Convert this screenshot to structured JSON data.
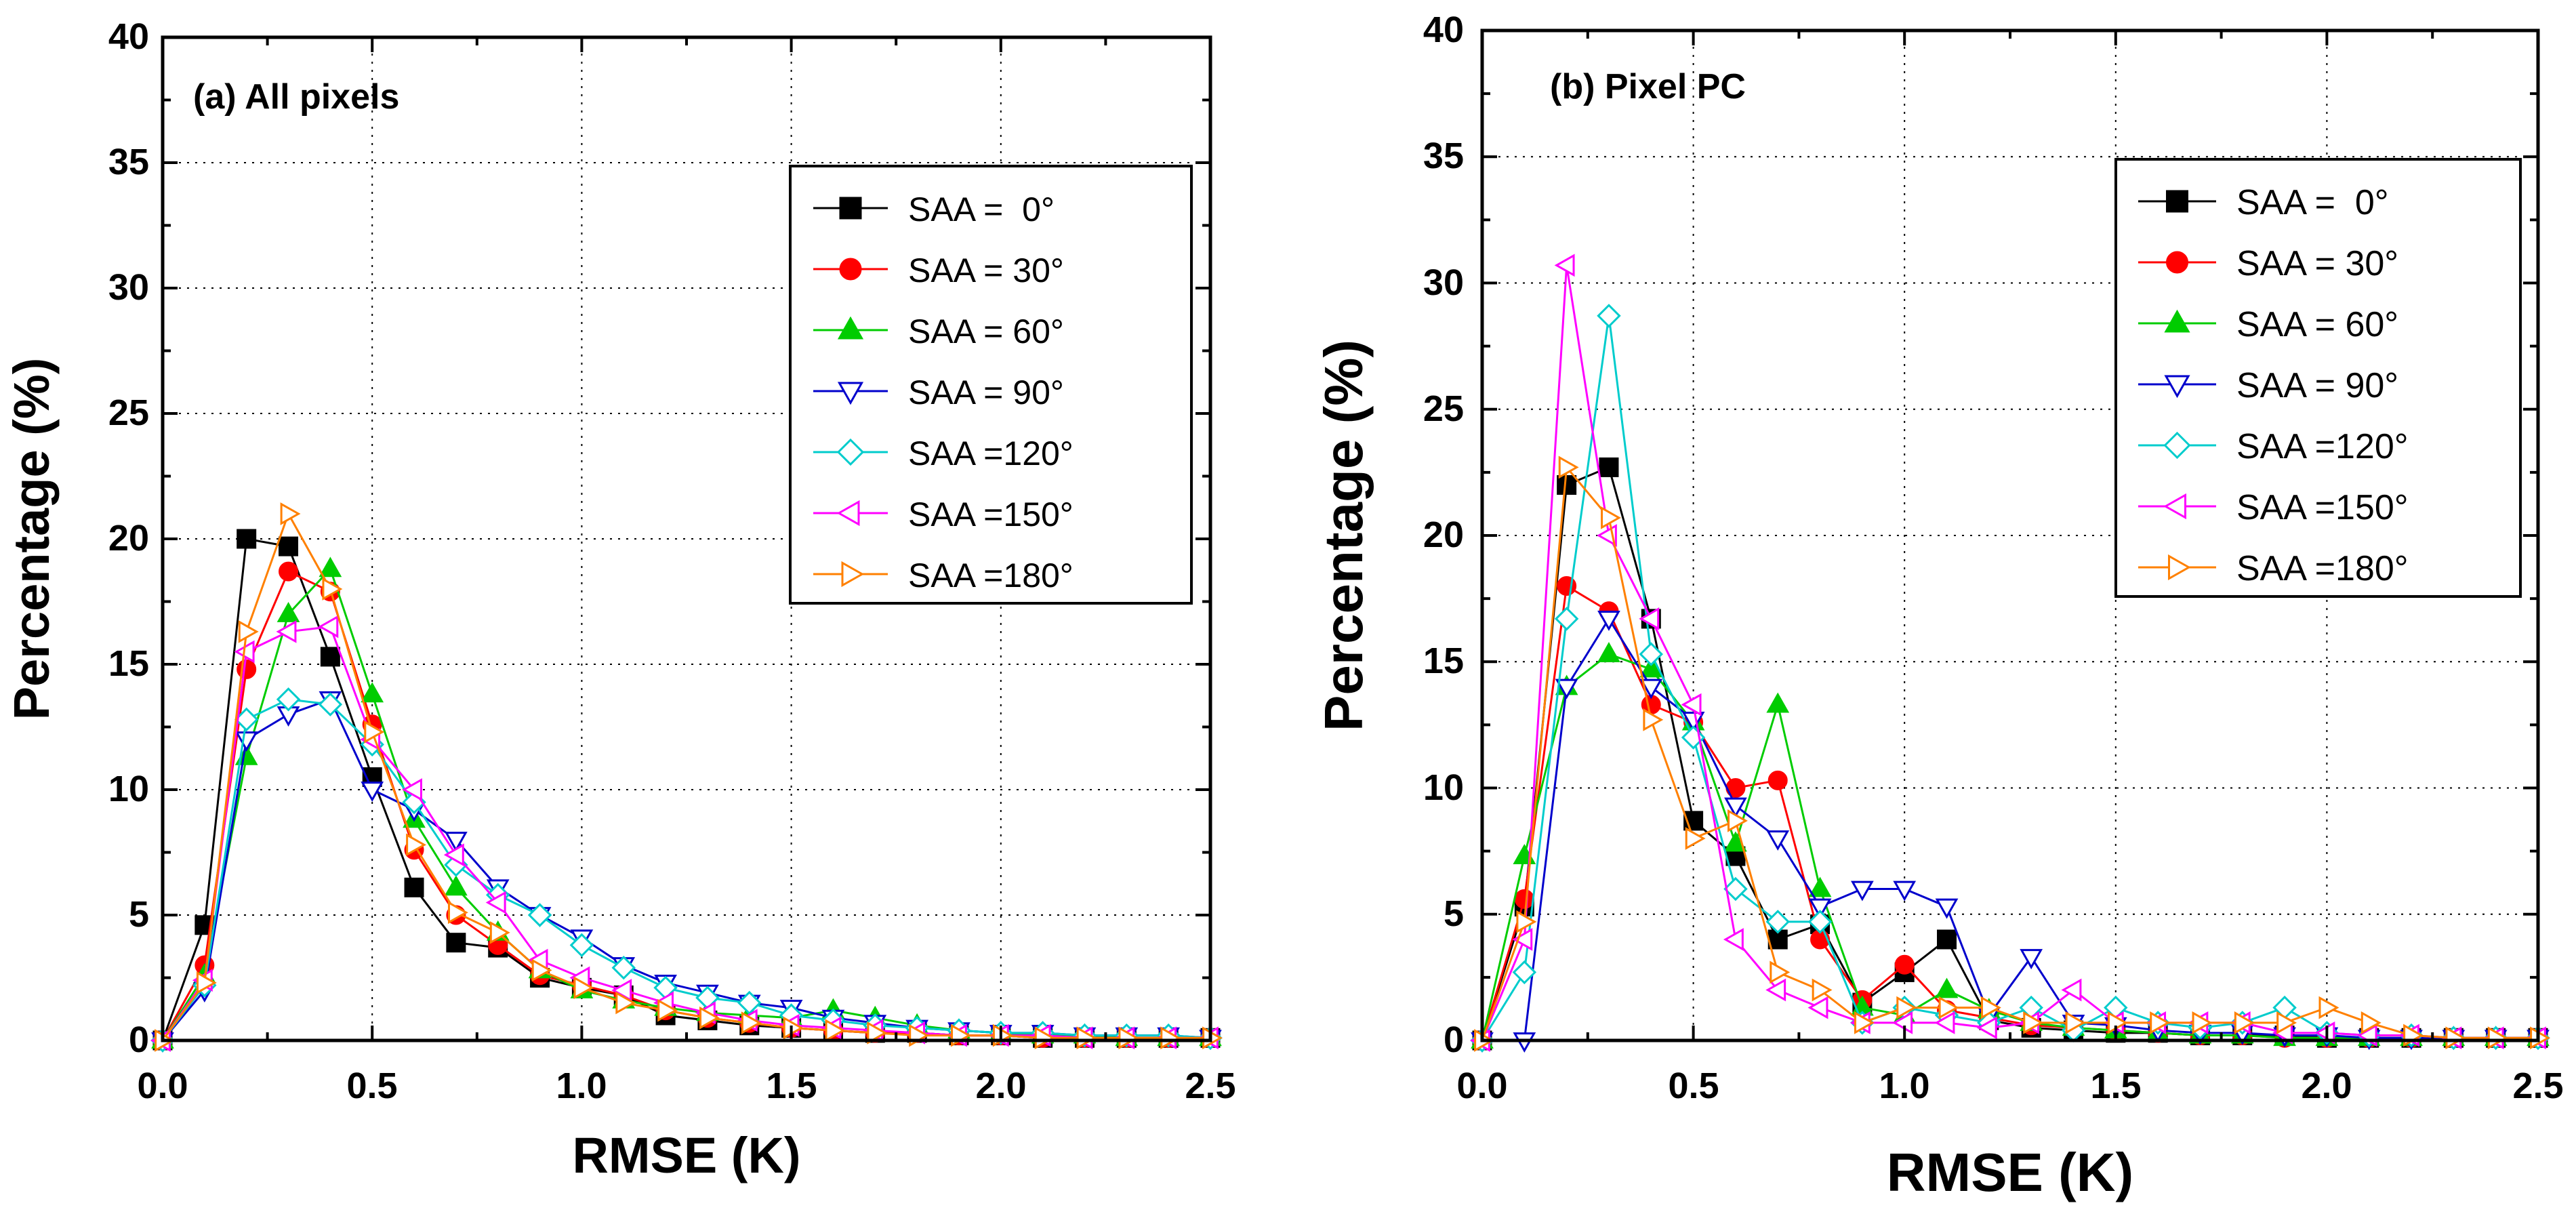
{
  "chart_data": [
    {
      "type": "line",
      "title": "(a) All pixels",
      "xlabel": "RMSE (K)",
      "ylabel": "Percentage (%)",
      "xlim": [
        0,
        2.5
      ],
      "ylim": [
        0,
        40
      ],
      "x_ticks": [
        "0.0",
        "0.5",
        "1.0",
        "1.5",
        "2.0",
        "2.5"
      ],
      "y_ticks": [
        "0",
        "5",
        "10",
        "15",
        "20",
        "25",
        "30",
        "35",
        "40"
      ],
      "grid": "dotted",
      "legend_position": "top-right",
      "x": [
        0.0,
        0.1,
        0.2,
        0.3,
        0.4,
        0.5,
        0.6,
        0.7,
        0.8,
        0.9,
        1.0,
        1.1,
        1.2,
        1.3,
        1.4,
        1.5,
        1.6,
        1.7,
        1.8,
        1.9,
        2.0,
        2.1,
        2.2,
        2.3,
        2.4,
        2.5
      ],
      "series": [
        {
          "name": "SAA =  0°",
          "color": "#000000",
          "marker": "square-filled",
          "values": [
            0,
            4.6,
            20.0,
            19.7,
            15.3,
            10.5,
            6.1,
            3.9,
            3.7,
            2.5,
            2.1,
            1.8,
            1.0,
            0.8,
            0.6,
            0.5,
            0.4,
            0.3,
            0.3,
            0.2,
            0.2,
            0.1,
            0.1,
            0.1,
            0.1,
            0.1
          ]
        },
        {
          "name": "SAA = 30°",
          "color": "#ff0000",
          "marker": "circle-filled",
          "values": [
            0,
            3.0,
            14.8,
            18.7,
            17.9,
            12.6,
            7.6,
            5.0,
            3.8,
            2.6,
            2.2,
            1.8,
            1.2,
            0.9,
            0.7,
            0.5,
            0.4,
            0.3,
            0.3,
            0.2,
            0.2,
            0.1,
            0.1,
            0.1,
            0.1,
            0.1
          ]
        },
        {
          "name": "SAA = 60°",
          "color": "#00cc00",
          "marker": "triangle-up-filled",
          "values": [
            0,
            2.6,
            11.3,
            17.0,
            18.8,
            13.8,
            8.8,
            6.1,
            4.3,
            2.8,
            2.0,
            1.6,
            1.3,
            1.1,
            1.0,
            0.9,
            1.2,
            0.9,
            0.6,
            0.4,
            0.3,
            0.2,
            0.2,
            0.1,
            0.1,
            0.1
          ]
        },
        {
          "name": "SAA = 90°",
          "color": "#0000cc",
          "marker": "triangle-down-open",
          "values": [
            0,
            2.0,
            12.0,
            13.0,
            13.6,
            10.0,
            9.2,
            8.0,
            6.1,
            5.0,
            4.1,
            3.0,
            2.3,
            1.9,
            1.5,
            1.3,
            0.9,
            0.7,
            0.5,
            0.4,
            0.3,
            0.3,
            0.2,
            0.2,
            0.2,
            0.1
          ]
        },
        {
          "name": "SAA =120°",
          "color": "#00cccc",
          "marker": "diamond-open",
          "values": [
            0,
            2.2,
            12.8,
            13.6,
            13.4,
            11.8,
            9.5,
            7.0,
            5.8,
            5.0,
            3.8,
            2.9,
            2.1,
            1.7,
            1.5,
            1.0,
            0.8,
            0.6,
            0.5,
            0.4,
            0.3,
            0.3,
            0.2,
            0.2,
            0.2,
            0.1
          ]
        },
        {
          "name": "SAA =150°",
          "color": "#ff00ff",
          "marker": "triangle-left-open",
          "values": [
            0,
            2.4,
            15.5,
            16.3,
            16.5,
            12.0,
            10.0,
            7.4,
            5.5,
            3.2,
            2.5,
            2.0,
            1.5,
            1.1,
            0.8,
            0.6,
            0.5,
            0.4,
            0.3,
            0.2,
            0.2,
            0.2,
            0.1,
            0.1,
            0.1,
            0.1
          ]
        },
        {
          "name": "SAA =180°",
          "color": "#ff8000",
          "marker": "triangle-right-open",
          "values": [
            0,
            2.3,
            16.3,
            21.0,
            18.0,
            12.3,
            7.8,
            5.1,
            4.3,
            2.8,
            2.1,
            1.5,
            1.2,
            0.9,
            0.7,
            0.5,
            0.4,
            0.3,
            0.2,
            0.2,
            0.2,
            0.1,
            0.1,
            0.1,
            0.1,
            0.1
          ]
        }
      ]
    },
    {
      "type": "line",
      "title": "(b) Pixel PC",
      "xlabel": "RMSE (K)",
      "ylabel": "Percentage (%)",
      "xlim": [
        0,
        2.5
      ],
      "ylim": [
        0,
        40
      ],
      "x_ticks": [
        "0.0",
        "0.5",
        "1.0",
        "1.5",
        "2.0",
        "2.5"
      ],
      "y_ticks": [
        "0",
        "5",
        "10",
        "15",
        "20",
        "25",
        "30",
        "35",
        "40"
      ],
      "grid": "dotted",
      "legend_position": "top-right",
      "x": [
        0.0,
        0.1,
        0.2,
        0.3,
        0.4,
        0.5,
        0.6,
        0.7,
        0.8,
        0.9,
        1.0,
        1.1,
        1.2,
        1.3,
        1.4,
        1.5,
        1.6,
        1.7,
        1.8,
        1.9,
        2.0,
        2.1,
        2.2,
        2.3,
        2.4,
        2.5
      ],
      "series": [
        {
          "name": "SAA =  0°",
          "color": "#000000",
          "marker": "square-filled",
          "values": [
            0,
            5.3,
            22.0,
            22.7,
            16.7,
            8.7,
            7.3,
            4.0,
            4.6,
            1.5,
            2.7,
            4.0,
            0.8,
            0.5,
            0.4,
            0.3,
            0.3,
            0.2,
            0.2,
            0.2,
            0.1,
            0.1,
            0.1,
            0.1,
            0.1,
            0.1
          ]
        },
        {
          "name": "SAA = 30°",
          "color": "#ff0000",
          "marker": "circle-filled",
          "values": [
            0,
            5.6,
            18.0,
            17.0,
            13.3,
            12.6,
            10.0,
            10.3,
            4.0,
            1.6,
            3.0,
            1.2,
            0.9,
            0.6,
            0.5,
            0.4,
            0.3,
            0.2,
            0.2,
            0.1,
            0.1,
            0.1,
            0.1,
            0.1,
            0.1,
            0.1
          ]
        },
        {
          "name": "SAA = 60°",
          "color": "#00cc00",
          "marker": "triangle-up-filled",
          "values": [
            0,
            7.3,
            14.0,
            15.3,
            14.7,
            12.6,
            7.8,
            13.3,
            6.0,
            1.3,
            1.0,
            2.0,
            1.2,
            0.7,
            0.5,
            0.4,
            0.3,
            0.2,
            0.2,
            0.1,
            0.1,
            0.1,
            0.1,
            0.1,
            0.1,
            0.1
          ]
        },
        {
          "name": "SAA = 90°",
          "color": "#0000cc",
          "marker": "triangle-down-open",
          "values": [
            0,
            0.0,
            14.0,
            16.7,
            14.0,
            12.7,
            9.3,
            8.0,
            5.3,
            6.0,
            6.0,
            5.3,
            1.0,
            3.3,
            0.7,
            0.6,
            0.4,
            0.3,
            0.3,
            0.2,
            0.2,
            0.1,
            0.1,
            0.1,
            0.1,
            0.1
          ]
        },
        {
          "name": "SAA =120°",
          "color": "#00cccc",
          "marker": "diamond-open",
          "values": [
            0,
            2.7,
            16.7,
            28.7,
            15.3,
            12.0,
            6.0,
            4.7,
            4.7,
            0.7,
            1.3,
            1.0,
            0.7,
            1.3,
            0.4,
            1.3,
            0.7,
            0.5,
            0.7,
            1.3,
            0.3,
            0.2,
            0.2,
            0.1,
            0.1,
            0.1
          ]
        },
        {
          "name": "SAA =150°",
          "color": "#ff00ff",
          "marker": "triangle-left-open",
          "values": [
            0,
            4.0,
            30.7,
            20.0,
            16.7,
            13.3,
            4.0,
            2.0,
            1.3,
            0.7,
            0.7,
            0.7,
            0.5,
            0.7,
            2.0,
            0.7,
            0.7,
            0.7,
            0.7,
            0.3,
            0.3,
            0.2,
            0.2,
            0.1,
            0.1,
            0.1
          ]
        },
        {
          "name": "SAA =180°",
          "color": "#ff8000",
          "marker": "triangle-right-open",
          "values": [
            0,
            4.7,
            22.7,
            20.7,
            12.7,
            8.0,
            8.7,
            2.7,
            2.0,
            0.7,
            1.3,
            1.3,
            1.3,
            0.7,
            0.7,
            0.7,
            0.7,
            0.7,
            0.7,
            0.7,
            1.3,
            0.7,
            0.2,
            0.1,
            0.1,
            0.1
          ]
        }
      ]
    }
  ]
}
